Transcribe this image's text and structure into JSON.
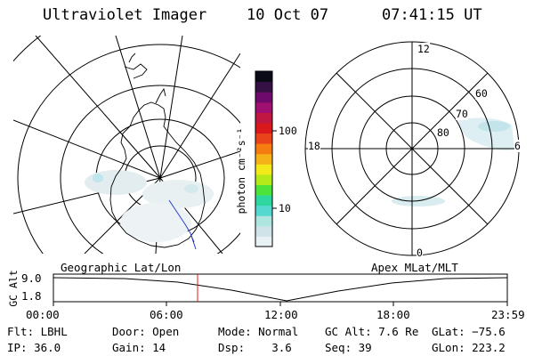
{
  "header": {
    "instrument": "Ultraviolet Imager",
    "date": "10 Oct 07",
    "time": "07:41:15 UT"
  },
  "colorbar": {
    "unit_label": "photon cm⁻²s⁻¹",
    "ticks": [
      "100",
      "10"
    ],
    "colors": [
      "#e8f1f3",
      "#cfe3e8",
      "#aee6df",
      "#55d8cf",
      "#2ed79f",
      "#4ee33a",
      "#b4ea1a",
      "#f2e91b",
      "#f5b219",
      "#f57c10",
      "#e8431a",
      "#d9191b",
      "#c01642",
      "#a01070",
      "#6e0a6c",
      "#351044",
      "#0b0b18"
    ]
  },
  "geo_map": {
    "label": "Geographic Lat/Lon"
  },
  "polar_plot": {
    "label": "Apex MLat/MLT",
    "mlt_labels": {
      "top": "12",
      "left": "18",
      "right": "6",
      "bottom": "0"
    },
    "lat_labels": [
      "60",
      "70",
      "80"
    ]
  },
  "orbit_plot": {
    "ylabel": "GC Alt",
    "yticks": [
      "9.0",
      "1.8"
    ],
    "xticks": [
      "00:00",
      "06:00",
      "12:00",
      "18:00",
      "23:59"
    ],
    "marker_color": "#e41a1a"
  },
  "footer": {
    "row1": [
      {
        "key": "filter",
        "text": "Flt: LBHL"
      },
      {
        "key": "door",
        "text": "Door: Open"
      },
      {
        "key": "mode",
        "text": "Mode: Normal"
      },
      {
        "key": "gc_alt",
        "text": "GC Alt: 7.6 Re"
      },
      {
        "key": "glat",
        "text": "GLat: −75.6"
      }
    ],
    "row2": [
      {
        "key": "ip",
        "text": "IP: 36.0"
      },
      {
        "key": "gain",
        "text": "Gain: 14"
      },
      {
        "key": "dsp",
        "text": "Dsp:    3.6"
      },
      {
        "key": "seq",
        "text": "Seq: 39"
      },
      {
        "key": "glon",
        "text": "GLon: 223.2"
      }
    ]
  }
}
